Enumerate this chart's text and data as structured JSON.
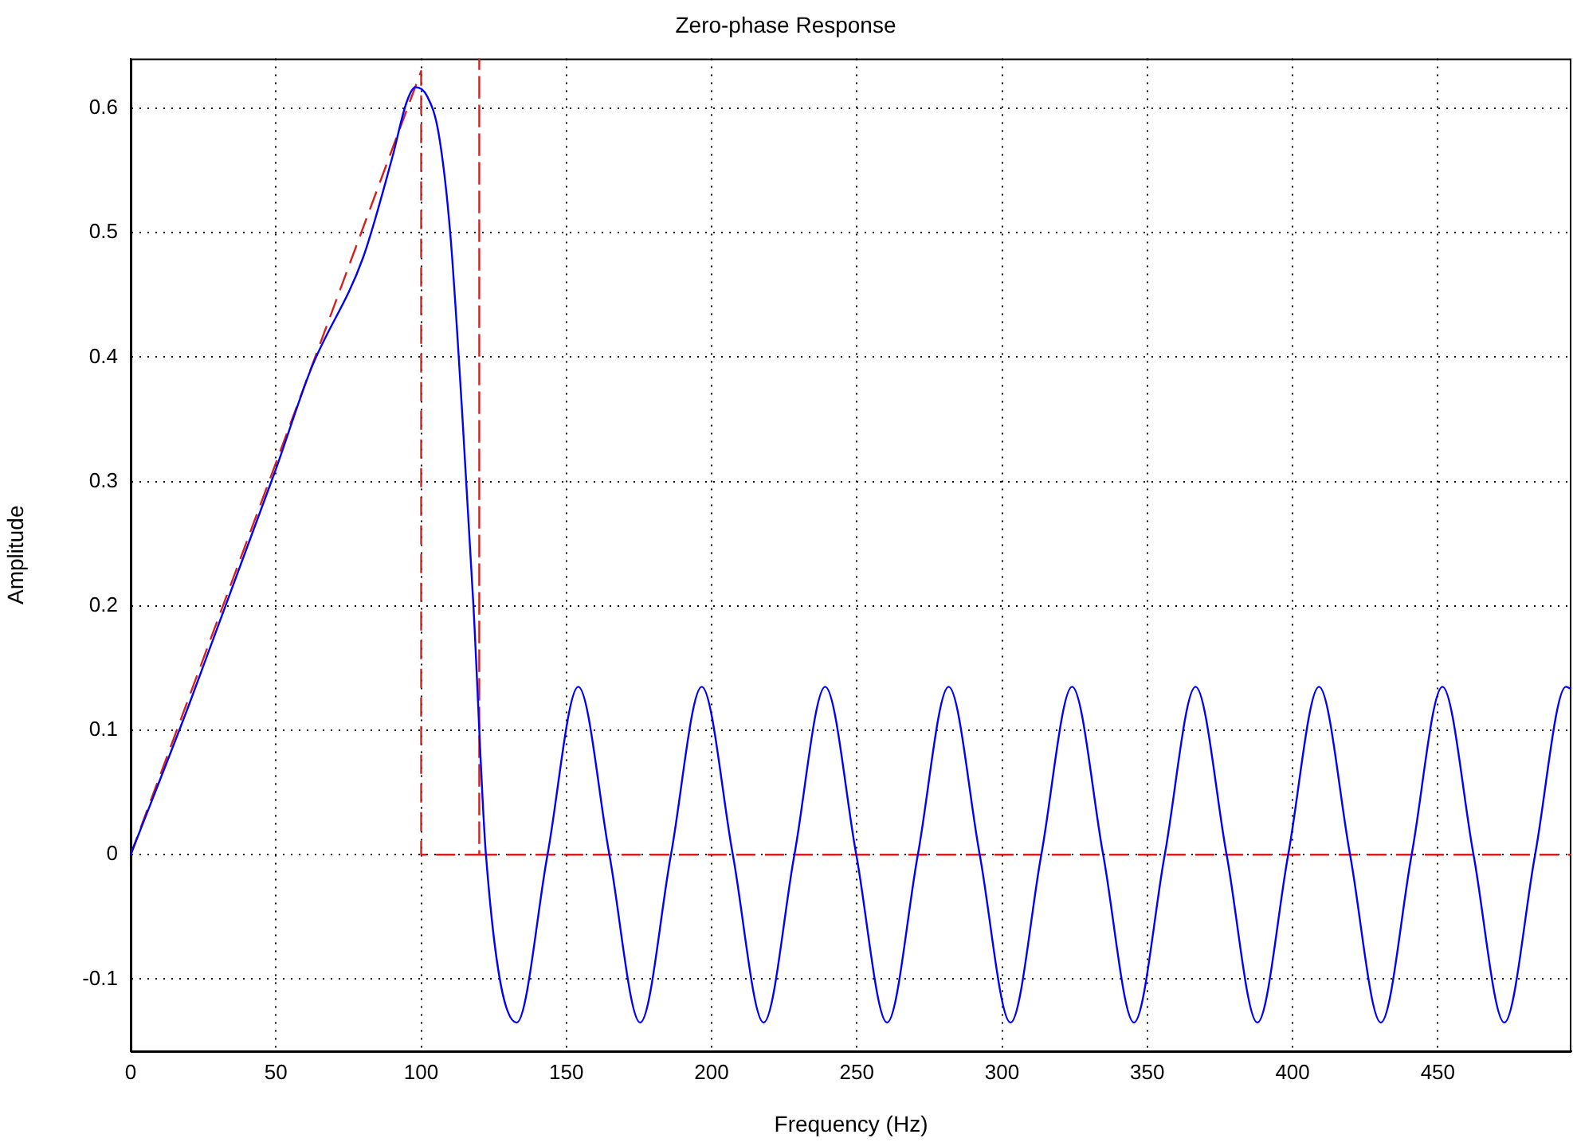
{
  "chart_data": {
    "type": "line",
    "title": "Zero-phase Response",
    "xlabel": "Frequency (Hz)",
    "ylabel": "Amplitude",
    "xlim": [
      0,
      496
    ],
    "xticks": [
      0,
      50,
      100,
      150,
      200,
      250,
      300,
      350,
      400,
      450
    ],
    "ylim": [
      -0.158,
      0.64
    ],
    "yticks": [
      -0.1,
      0,
      0.1,
      0.2,
      0.3,
      0.4,
      0.5,
      0.6
    ],
    "grid": true,
    "legend": false,
    "marker": "none",
    "series": [
      {
        "color": "#0000ff",
        "line_style": "solid",
        "x": [
          0,
          20,
          50,
          62,
          80,
          90,
          95,
          98,
          102,
          106,
          110,
          114,
          118,
          122.3,
          132.9,
          143.5,
          154.1,
          164.8,
          175.4,
          186,
          196.6,
          207.3,
          217.9,
          228.5,
          239.1,
          249.8,
          260.4,
          271,
          281.6,
          292.3,
          302.9,
          313.5,
          324.1,
          334.8,
          345.4,
          356,
          366.6,
          377.3,
          387.9,
          398.5,
          409.1,
          419.8,
          430.4,
          441,
          451.6,
          462.3,
          472.9,
          483.5,
          494.1,
          496
        ],
        "values": [
          0,
          0.12,
          0.31,
          0.39,
          0.48,
          0.56,
          0.605,
          0.617,
          0.61,
          0.58,
          0.5,
          0.36,
          0.2,
          0,
          -0.135,
          0,
          0.135,
          0,
          -0.135,
          0,
          0.135,
          0,
          -0.135,
          0,
          0.135,
          0,
          -0.135,
          0,
          0.135,
          0,
          -0.135,
          0,
          0.135,
          0,
          -0.135,
          0,
          0.135,
          0,
          -0.135,
          0,
          0.135,
          0,
          -0.135,
          0,
          0.135,
          0,
          -0.135,
          0,
          0.135,
          0.133
        ]
      },
      {
        "color": "#d62020",
        "line_style": "dashed",
        "x": [
          0,
          100,
          100,
          120,
          120,
          120,
          496
        ],
        "values": [
          0,
          0.63,
          0,
          0,
          0.64,
          0,
          0
        ]
      }
    ]
  }
}
